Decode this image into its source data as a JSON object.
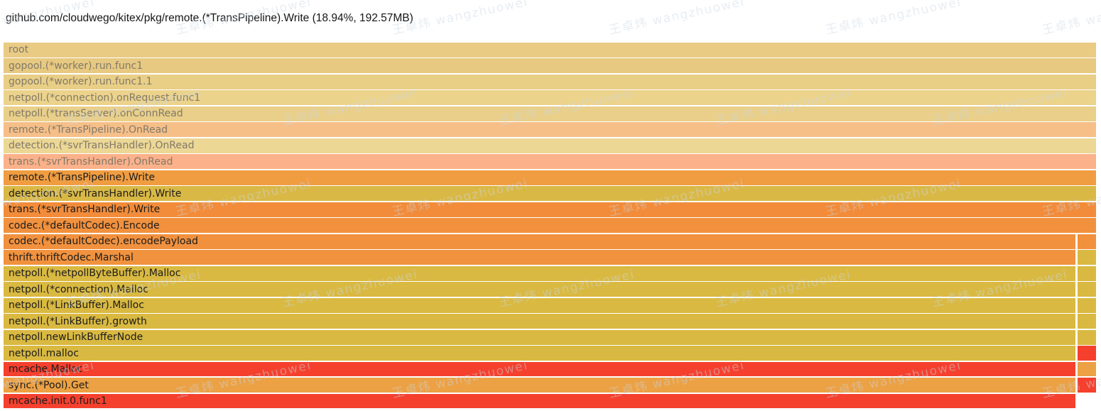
{
  "palette": {
    "background": "#ffffff",
    "dim_text": "#81796a",
    "dark_text": "#1c1c1c",
    "khaki": "#e9cb84",
    "mustard": "#d9b941",
    "orange": "#f1913e",
    "red": "#f5402e"
  },
  "watermark": {
    "text": "王卓炜 wangzhuowei"
  },
  "chart_data": {
    "type": "flamegraph",
    "title": "github.com/cloudwego/kitex/pkg/remote.(*TransPipeline).Write (18.94%, 192.57MB)",
    "selected_frame": "github.com/cloudwego/kitex/pkg/remote.(*TransPipeline).Write",
    "selected_percent": "18.94%",
    "selected_size": "192.57MB",
    "stack_rows": [
      {
        "label": "root",
        "color": "#e9cb84",
        "dim": true,
        "width_pct": 100,
        "right_block": null
      },
      {
        "label": "gopool.(*worker).run.func1",
        "color": "#e7c981",
        "dim": true,
        "width_pct": 100,
        "right_block": null
      },
      {
        "label": "gopool.(*worker).run.func1.1",
        "color": "#e9ce86",
        "dim": true,
        "width_pct": 100,
        "right_block": null
      },
      {
        "label": "netpoll.(*connection).onRequest.func1",
        "color": "#ecd38c",
        "dim": true,
        "width_pct": 100,
        "right_block": null
      },
      {
        "label": "netpoll.(*transServer).onConnRead",
        "color": "#e9cf89",
        "dim": true,
        "width_pct": 100,
        "right_block": null
      },
      {
        "label": "remote.(*TransPipeline).OnRead",
        "color": "#f6bf88",
        "dim": true,
        "width_pct": 100,
        "right_block": null
      },
      {
        "label": "detection.(*svrTransHandler).OnRead",
        "color": "#ecd795",
        "dim": true,
        "width_pct": 100,
        "right_block": null
      },
      {
        "label": "trans.(*svrTransHandler).OnRead",
        "color": "#fbb189",
        "dim": true,
        "width_pct": 100,
        "right_block": null
      },
      {
        "label": "remote.(*TransPipeline).Write",
        "color": "#f09d41",
        "dim": false,
        "width_pct": 100,
        "right_block": null
      },
      {
        "label": "detection.(*svrTransHandler).Write",
        "color": "#d9b845",
        "dim": false,
        "width_pct": 100,
        "right_block": null
      },
      {
        "label": "trans.(*svrTransHandler).Write",
        "color": "#f28c3a",
        "dim": false,
        "width_pct": 100,
        "right_block": null
      },
      {
        "label": "codec.(*defaultCodec).Encode",
        "color": "#f1913e",
        "dim": false,
        "width_pct": 100,
        "right_block": null
      },
      {
        "label": "codec.(*defaultCodec).encodePayload",
        "color": "#f1913e",
        "dim": false,
        "width_pct": 98.1,
        "right_block": {
          "color": "#f1913e",
          "width_pct": 1.7
        }
      },
      {
        "label": "thrift.thriftCodec.Marshal",
        "color": "#f1923e",
        "dim": false,
        "width_pct": 98.1,
        "right_block": {
          "color": "#d9b941",
          "width_pct": 1.7
        }
      },
      {
        "label": "netpoll.(*netpollByteBuffer).Malloc",
        "color": "#d9b941",
        "dim": false,
        "width_pct": 98.1,
        "right_block": {
          "color": "#d9b941",
          "width_pct": 1.7
        }
      },
      {
        "label": "netpoll.(*connection).Malloc",
        "color": "#d9b941",
        "dim": false,
        "width_pct": 98.1,
        "right_block": {
          "color": "#d9b941",
          "width_pct": 1.7
        }
      },
      {
        "label": "netpoll.(*LinkBuffer).Malloc",
        "color": "#d9b941",
        "dim": false,
        "width_pct": 98.1,
        "right_block": {
          "color": "#d9b941",
          "width_pct": 1.7
        }
      },
      {
        "label": "netpoll.(*LinkBuffer).growth",
        "color": "#d9b941",
        "dim": false,
        "width_pct": 98.1,
        "right_block": {
          "color": "#d9b941",
          "width_pct": 1.7
        }
      },
      {
        "label": "netpoll.newLinkBufferNode",
        "color": "#d9b941",
        "dim": false,
        "width_pct": 98.1,
        "right_block": {
          "color": "#d9b941",
          "width_pct": 1.7
        }
      },
      {
        "label": "netpoll.malloc",
        "color": "#d9b941",
        "dim": false,
        "width_pct": 98.1,
        "right_block": {
          "color": "#f5402e",
          "width_pct": 1.7
        }
      },
      {
        "label": "mcache.Malloc",
        "color": "#f5402e",
        "dim": false,
        "width_pct": 98.1,
        "right_block": {
          "color": "#eca144",
          "width_pct": 1.7
        }
      },
      {
        "label": "sync.(*Pool).Get",
        "color": "#eca144",
        "dim": false,
        "width_pct": 98.1,
        "right_block": {
          "color": "#f5402e",
          "width_pct": 1.7
        }
      },
      {
        "label": "mcache.init.0.func1",
        "color": "#f5402e",
        "dim": false,
        "width_pct": 98.1,
        "right_block": null
      }
    ]
  }
}
